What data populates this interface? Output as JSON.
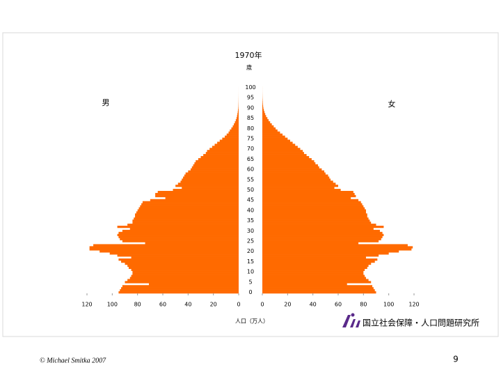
{
  "chart_data": {
    "type": "population_pyramid",
    "title": "1970年",
    "y_unit_label": "歳",
    "x_axis_label": "人口（万人）",
    "categories": [
      0,
      null,
      null,
      null,
      null,
      5,
      null,
      null,
      null,
      null,
      10,
      null,
      null,
      null,
      null,
      15,
      null,
      null,
      null,
      null,
      20,
      null,
      null,
      null,
      null,
      25,
      null,
      null,
      null,
      null,
      30,
      null,
      null,
      null,
      null,
      35,
      null,
      null,
      null,
      null,
      40,
      null,
      null,
      null,
      null,
      45,
      null,
      null,
      null,
      null,
      50,
      null,
      null,
      null,
      null,
      55,
      null,
      null,
      null,
      null,
      60,
      null,
      null,
      null,
      null,
      65,
      null,
      null,
      null,
      null,
      70,
      null,
      null,
      null,
      null,
      75,
      null,
      null,
      null,
      null,
      80,
      null,
      null,
      null,
      null,
      85,
      null,
      null,
      null,
      null,
      90,
      null,
      null,
      null,
      null,
      95,
      null,
      null,
      null,
      null,
      100
    ],
    "series": [
      {
        "name": "男",
        "color": "#ff6a00",
        "side": "left",
        "values": [
          95,
          94,
          93,
          92,
          71,
          90,
          88,
          86,
          85,
          84,
          84,
          85,
          87,
          88,
          90,
          93,
          95,
          85,
          96,
          102,
          110,
          118,
          118,
          115,
          74,
          92,
          94,
          95,
          96,
          95,
          92,
          86,
          96,
          88,
          84,
          84,
          83,
          82,
          82,
          81,
          80,
          79,
          78,
          77,
          76,
          70,
          58,
          66,
          66,
          64,
          52,
          45,
          50,
          48,
          46,
          45,
          44,
          43,
          42,
          40,
          38,
          37,
          36,
          35,
          34,
          32,
          30,
          28,
          26,
          25,
          23,
          21,
          19,
          17,
          15,
          13,
          11,
          9.5,
          8,
          7,
          5.8,
          4.7,
          3.8,
          3,
          2.3,
          1.7,
          1.3,
          1,
          0.7,
          0.5,
          0.3,
          0.2,
          0.15,
          0.1,
          0.07,
          0.05,
          0.03,
          0.02,
          0.01,
          0.01,
          0.01
        ]
      },
      {
        "name": "女",
        "color": "#ff6a00",
        "side": "right",
        "values": [
          90,
          89,
          88,
          87,
          67,
          86,
          84,
          82,
          81,
          80,
          80,
          81,
          83,
          84,
          86,
          89,
          91,
          82,
          92,
          100,
          108,
          118,
          119,
          115,
          76,
          92,
          94,
          95,
          96,
          95,
          93,
          88,
          96,
          90,
          86,
          85,
          84,
          83,
          83,
          82,
          82,
          81,
          80,
          79,
          78,
          76,
          70,
          74,
          73,
          72,
          62,
          57,
          60,
          58,
          56,
          54,
          53,
          52,
          50,
          49,
          47,
          45,
          44,
          42,
          41,
          39,
          37,
          35,
          33,
          32,
          30,
          28,
          26,
          24,
          22,
          20,
          18,
          16,
          14,
          12,
          10.5,
          9,
          7.5,
          6.2,
          5,
          4,
          3,
          2.3,
          1.7,
          1.2,
          0.8,
          0.6,
          0.4,
          0.3,
          0.2,
          0.12,
          0.08,
          0.05,
          0.03,
          0.02,
          0.02
        ]
      }
    ],
    "xlim": [
      0,
      120
    ],
    "xticks": [
      0,
      20,
      40,
      60,
      80,
      100,
      120
    ]
  },
  "logo": "国立社会保障・人口問題研究所",
  "footer": "© Michael Smitka 2007",
  "page_number": "9"
}
